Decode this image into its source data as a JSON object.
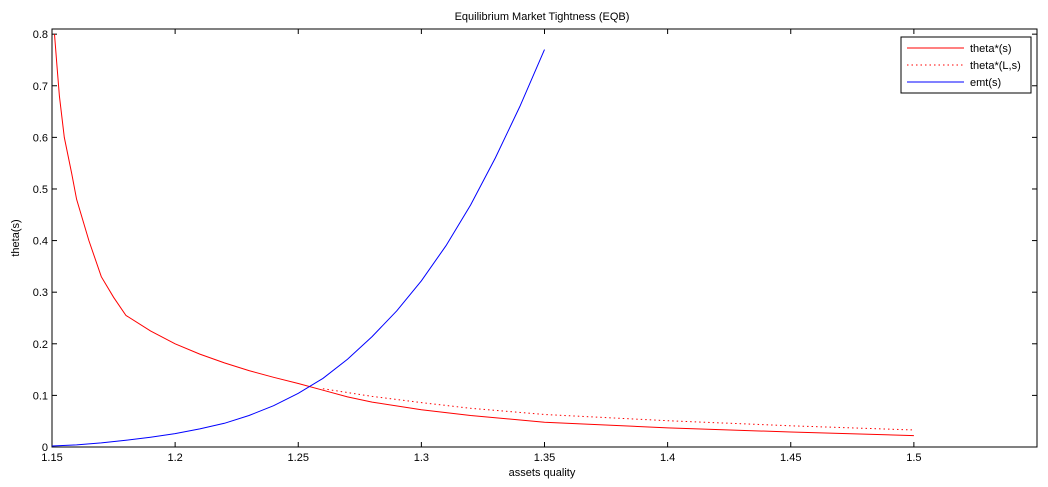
{
  "chart_data": {
    "type": "line",
    "title": "Equilibrium Market Tightness (EQB)",
    "xlabel": "assets quality",
    "ylabel": "theta(s)",
    "xlim": [
      1.15,
      1.55
    ],
    "ylim": [
      0,
      0.81
    ],
    "xticks": [
      1.15,
      1.2,
      1.25,
      1.3,
      1.35,
      1.4,
      1.45,
      1.5
    ],
    "xtick_labels": [
      "1.15",
      "1.2",
      "1.25",
      "1.3",
      "1.35",
      "1.4",
      "1.45",
      "1.5"
    ],
    "yticks": [
      0,
      0.1,
      0.2,
      0.3,
      0.4,
      0.5,
      0.6,
      0.7,
      0.8
    ],
    "ytick_labels": [
      "0",
      "0.1",
      "0.2",
      "0.3",
      "0.4",
      "0.5",
      "0.6",
      "0.7",
      "0.8"
    ],
    "grid": false,
    "legend_position": "top-right",
    "series": [
      {
        "name": "theta*(s)",
        "color": "#ff0000",
        "style": "solid",
        "x": [
          1.151,
          1.152,
          1.153,
          1.155,
          1.158,
          1.16,
          1.165,
          1.17,
          1.175,
          1.18,
          1.19,
          1.2,
          1.21,
          1.22,
          1.23,
          1.24,
          1.25,
          1.26,
          1.27,
          1.28,
          1.3,
          1.32,
          1.35,
          1.4,
          1.45,
          1.5
        ],
        "values": [
          0.8,
          0.74,
          0.68,
          0.6,
          0.53,
          0.48,
          0.4,
          0.33,
          0.29,
          0.255,
          0.225,
          0.2,
          0.18,
          0.163,
          0.148,
          0.135,
          0.123,
          0.11,
          0.097,
          0.087,
          0.072,
          0.061,
          0.048,
          0.037,
          0.029,
          0.022
        ]
      },
      {
        "name": "theta*(L,s)",
        "color": "#ff0000",
        "style": "dotted",
        "x": [
          1.26,
          1.28,
          1.3,
          1.32,
          1.35,
          1.4,
          1.45,
          1.5
        ],
        "values": [
          0.113,
          0.098,
          0.086,
          0.075,
          0.063,
          0.051,
          0.041,
          0.033
        ]
      },
      {
        "name": "emt(s)",
        "color": "#0000ff",
        "style": "solid",
        "x": [
          1.15,
          1.16,
          1.17,
          1.18,
          1.19,
          1.2,
          1.21,
          1.22,
          1.23,
          1.24,
          1.25,
          1.26,
          1.27,
          1.28,
          1.29,
          1.3,
          1.31,
          1.32,
          1.33,
          1.34,
          1.35
        ],
        "values": [
          0.002,
          0.004,
          0.008,
          0.013,
          0.019,
          0.026,
          0.035,
          0.046,
          0.061,
          0.08,
          0.104,
          0.133,
          0.17,
          0.214,
          0.264,
          0.322,
          0.39,
          0.469,
          0.56,
          0.66,
          0.77
        ]
      }
    ]
  }
}
